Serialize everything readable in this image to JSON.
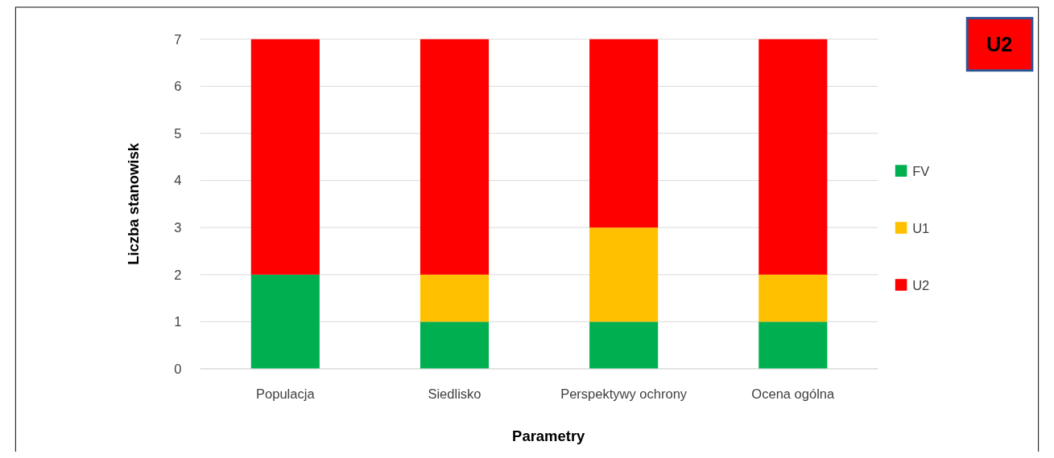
{
  "chart_data": {
    "type": "bar",
    "stacked": true,
    "xlabel": "Parametry",
    "ylabel": "Liczba stanowisk",
    "categories": [
      "Populacja",
      "Siedlisko",
      "Perspektywy ochrony",
      "Ocena ogólna"
    ],
    "series": [
      {
        "name": "FV",
        "color": "#00b050",
        "values": [
          2,
          1,
          1,
          1
        ]
      },
      {
        "name": "U1",
        "color": "#ffc000",
        "values": [
          0,
          1,
          2,
          1
        ]
      },
      {
        "name": "U2",
        "color": "#ff0000",
        "values": [
          5,
          5,
          4,
          5
        ]
      }
    ],
    "ylim": [
      0,
      7
    ],
    "yticks": [
      0,
      1,
      2,
      3,
      4,
      5,
      6,
      7
    ],
    "grid": "y",
    "legend": "right",
    "annotations": [
      "U2"
    ]
  }
}
